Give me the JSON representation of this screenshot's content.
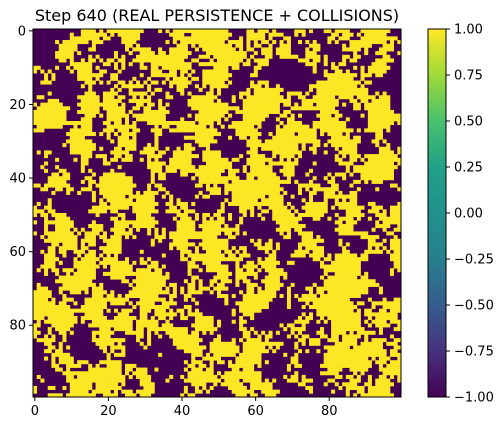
{
  "chart_data": {
    "type": "heatmap",
    "title": "Step 640 (REAL PERSISTENCE + COLLISIONS)",
    "xlabel": "",
    "ylabel": "",
    "grid_size": [
      100,
      100
    ],
    "xlim": [
      -0.5,
      99.5
    ],
    "ylim": [
      99.5,
      -0.5
    ],
    "x_ticks": [
      0,
      20,
      40,
      60,
      80
    ],
    "y_ticks": [
      0,
      20,
      40,
      60,
      80
    ],
    "x_tick_labels": [
      "0",
      "20",
      "40",
      "60",
      "80"
    ],
    "y_tick_labels": [
      "0",
      "20",
      "40",
      "60",
      "80"
    ],
    "value_range": [
      -1,
      1
    ],
    "cell_values": [
      -1,
      1
    ],
    "fraction_plus_one": 0.52,
    "colormap": "viridis",
    "colors": {
      "low": "#440154",
      "high": "#fde725"
    },
    "colorbar": {
      "ticks": [
        1.0,
        0.75,
        0.5,
        0.25,
        0.0,
        -0.25,
        -0.5,
        -0.75,
        -1.0
      ],
      "tick_labels": [
        "1.00",
        "0.75",
        "0.50",
        "0.25",
        "0.00",
        "−0.25",
        "−0.50",
        "−0.75",
        "−1.00"
      ]
    },
    "grid": false,
    "legend": "none"
  }
}
